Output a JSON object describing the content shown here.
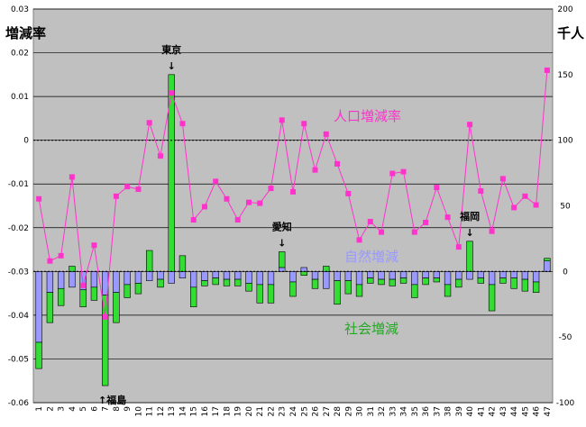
{
  "chart_data": {
    "type": "bar",
    "x": [
      "1",
      "2",
      "3",
      "4",
      "5",
      "6",
      "7",
      "8",
      "9",
      "10",
      "11",
      "12",
      "13",
      "14",
      "15",
      "16",
      "17",
      "18",
      "19",
      "20",
      "21",
      "22",
      "23",
      "24",
      "25",
      "26",
      "27",
      "28",
      "29",
      "30",
      "31",
      "32",
      "33",
      "34",
      "35",
      "36",
      "37",
      "38",
      "39",
      "40",
      "41",
      "42",
      "43",
      "44",
      "45",
      "46",
      "47"
    ],
    "left_axis": {
      "title": "増減率",
      "ylim": [
        -0.06,
        0.03
      ],
      "ticks": [
        "-0.06",
        "-0.05",
        "-0.04",
        "-0.03",
        "-0.02",
        "-0.01",
        "0",
        "0.01",
        "0.02",
        "0.03"
      ]
    },
    "right_axis": {
      "title": "千人",
      "ylim": [
        -100,
        200
      ],
      "ticks": [
        "-100",
        "-50",
        "0",
        "50",
        "100",
        "150",
        "200"
      ]
    },
    "series": [
      {
        "name": "人口増減率",
        "kind": "line",
        "axis": "left",
        "color": "#ff33cc",
        "values": [
          -0.0134,
          -0.0276,
          -0.0264,
          -0.0084,
          -0.0332,
          -0.024,
          -0.0404,
          -0.0128,
          -0.0106,
          -0.0112,
          0.004,
          -0.0036,
          0.0108,
          0.0038,
          -0.0182,
          -0.0152,
          -0.0094,
          -0.0134,
          -0.0182,
          -0.0142,
          -0.0144,
          -0.011,
          0.0046,
          -0.0118,
          0.0038,
          -0.0068,
          0.0014,
          -0.0054,
          -0.0122,
          -0.0228,
          -0.0186,
          -0.021,
          -0.0076,
          -0.0072,
          -0.021,
          -0.0188,
          -0.0108,
          -0.0176,
          -0.0244,
          0.0036,
          -0.0116,
          -0.0208,
          -0.0088,
          -0.0154,
          -0.0128,
          -0.0148,
          0.016
        ]
      },
      {
        "name": "自然増減",
        "kind": "bar",
        "axis": "right",
        "color": "#9999ff",
        "values": [
          -54,
          -16,
          -13,
          -12,
          -14,
          -12,
          -18,
          -16,
          -10,
          -9,
          -7,
          -6,
          -9,
          -5,
          -12,
          -7,
          -5,
          -6,
          -6,
          -9,
          -10,
          -10,
          3,
          -8,
          3,
          -6,
          -13,
          -7,
          -7,
          -10,
          -5,
          -6,
          -6,
          -5,
          -10,
          -5,
          -5,
          -10,
          -6,
          -6,
          -5,
          -10,
          -5,
          -5,
          -6,
          -8,
          8
        ]
      },
      {
        "name": "社会増減",
        "kind": "bar",
        "axis": "right",
        "color": "#33dd33",
        "values": [
          -20,
          -23,
          -13,
          4,
          -13,
          -10,
          -69,
          -23,
          -10,
          -8,
          16,
          -6,
          150,
          12,
          -15,
          -4,
          -5,
          -5,
          -5,
          -6,
          -14,
          -14,
          12,
          -11,
          -3,
          -7,
          4,
          -18,
          -10,
          -9,
          -4,
          -4,
          -5,
          -4,
          -10,
          -5,
          -3,
          -9,
          -6,
          23,
          -4,
          -20,
          -4,
          -8,
          -9,
          -8,
          2
        ]
      }
    ],
    "annotations": [
      {
        "text": "東京",
        "arrow": "↓",
        "x": "13"
      },
      {
        "text": "愛知",
        "arrow": "↓",
        "x": "23"
      },
      {
        "text": "福岡",
        "arrow": "↓",
        "x": "40"
      },
      {
        "text": "福島",
        "arrow": "↑",
        "x": "7"
      }
    ],
    "grid": true,
    "background": "#c0c0c0"
  }
}
